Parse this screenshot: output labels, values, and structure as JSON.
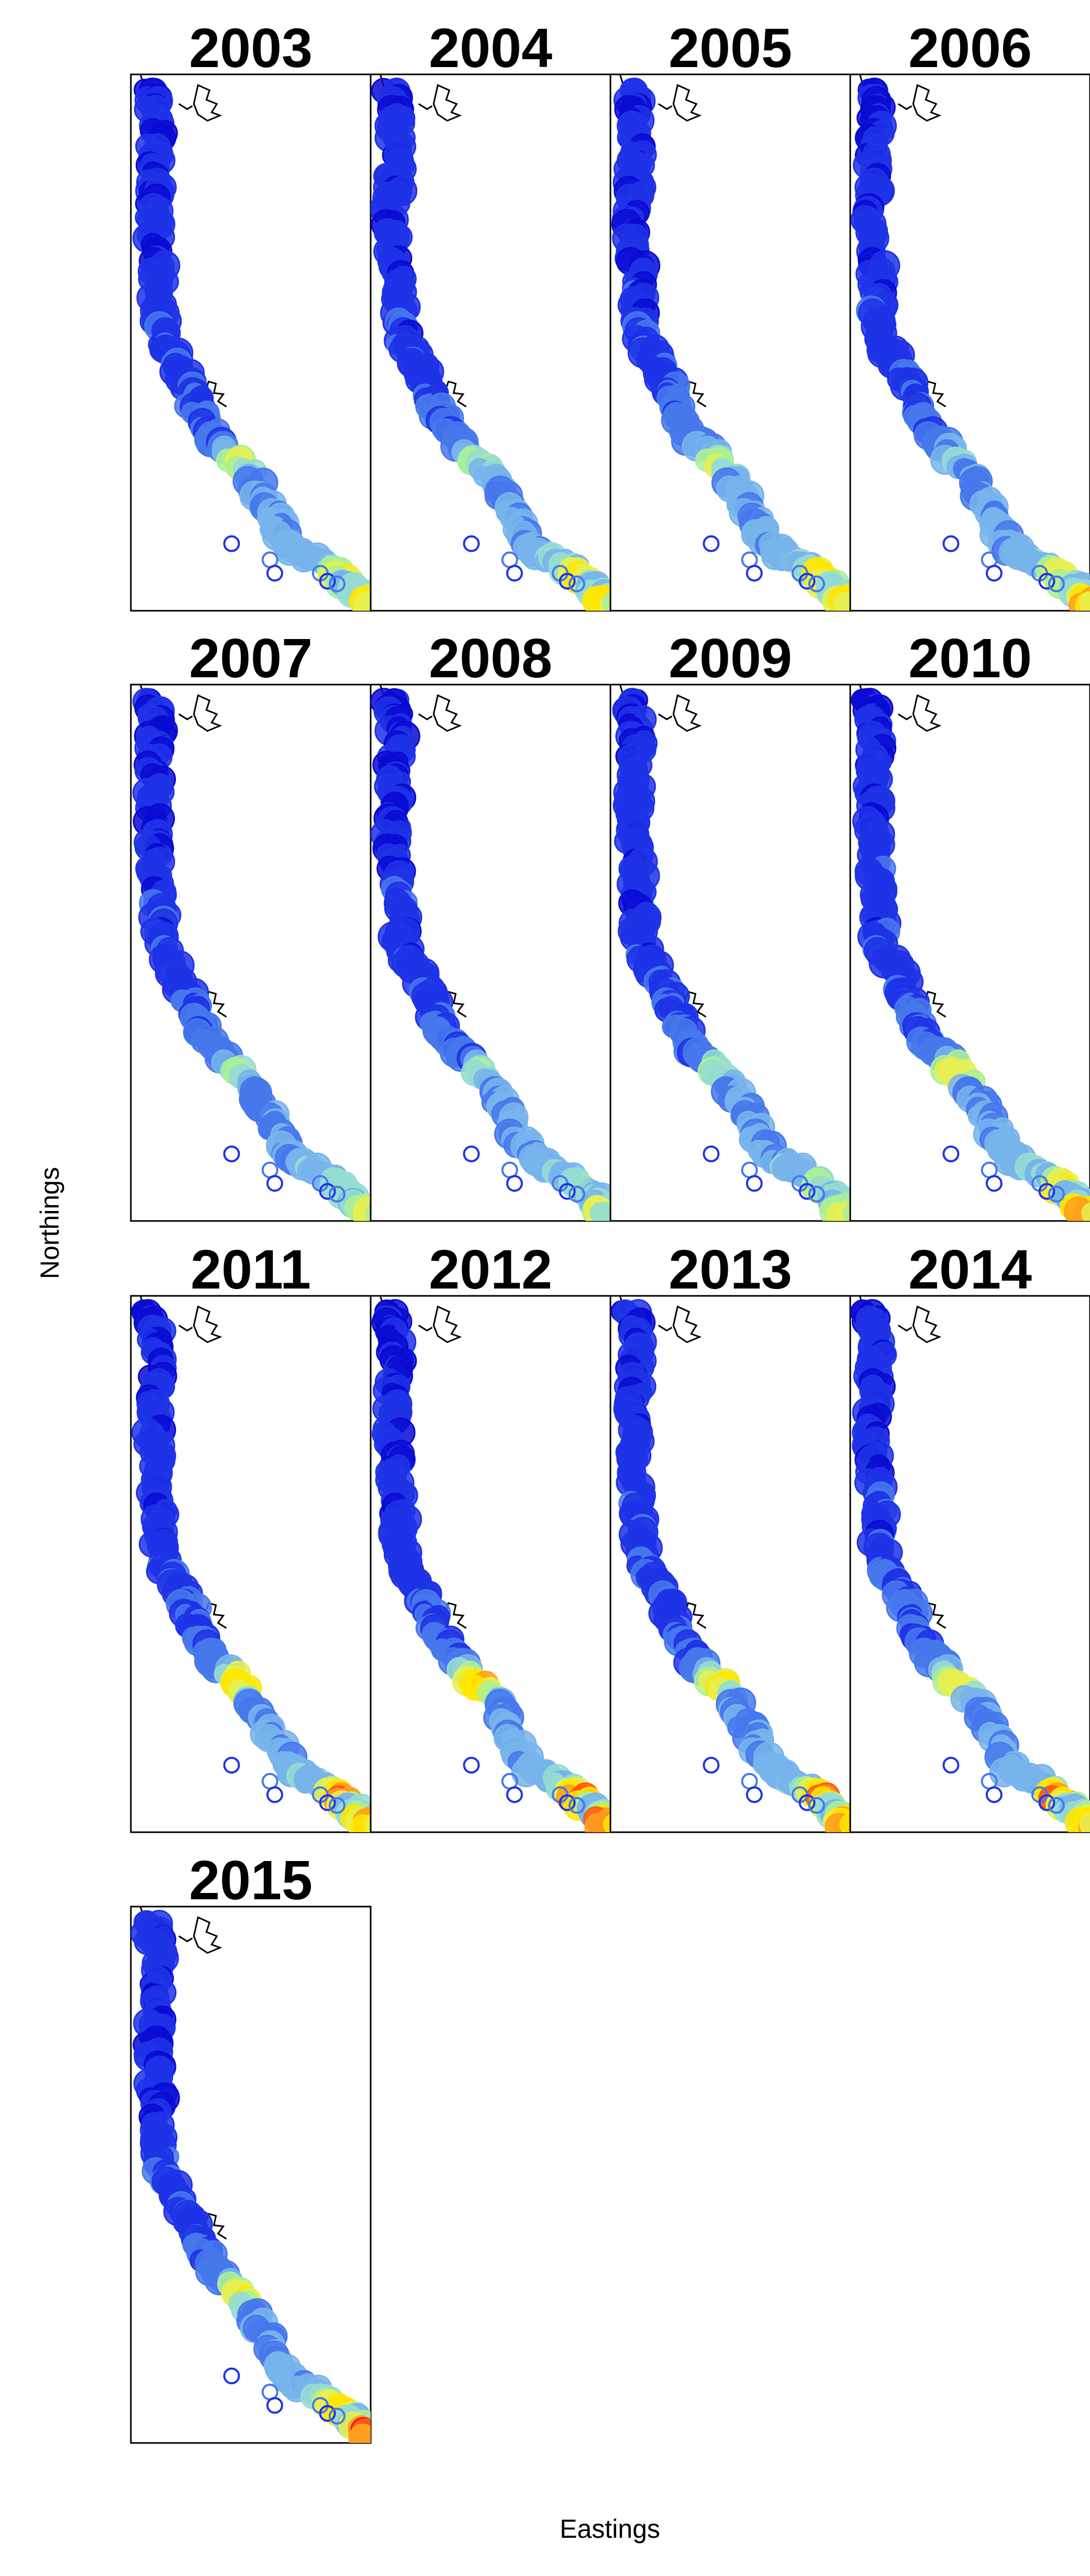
{
  "figure": {
    "xlabel": "Eastings",
    "ylabel": "Northings"
  },
  "colors": {
    "scale": [
      "#0a0ad2",
      "#1e32e6",
      "#4678ec",
      "#78b4ec",
      "#96dcd2",
      "#aaf096",
      "#e6f050",
      "#ffe600",
      "#ffa01e",
      "#ff5a14",
      "#e61e1e"
    ]
  },
  "panels": [
    {
      "year": "2003",
      "hotspots": [
        [
          0.64,
          5
        ],
        [
          0.9,
          6
        ],
        [
          0.985,
          6
        ]
      ]
    },
    {
      "year": "2004",
      "hotspots": [
        [
          0.64,
          4
        ],
        [
          0.9,
          6
        ],
        [
          0.985,
          6
        ]
      ]
    },
    {
      "year": "2005",
      "hotspots": [
        [
          0.64,
          5
        ],
        [
          0.9,
          7
        ],
        [
          0.985,
          6
        ]
      ]
    },
    {
      "year": "2006",
      "hotspots": [
        [
          0.64,
          3
        ],
        [
          0.9,
          6
        ],
        [
          0.985,
          7
        ]
      ]
    },
    {
      "year": "2007",
      "hotspots": [
        [
          0.64,
          4
        ],
        [
          0.9,
          4
        ],
        [
          0.985,
          5
        ]
      ]
    },
    {
      "year": "2008",
      "hotspots": [
        [
          0.64,
          4
        ],
        [
          0.9,
          4
        ],
        [
          0.985,
          5
        ]
      ]
    },
    {
      "year": "2009",
      "hotspots": [
        [
          0.64,
          4
        ],
        [
          0.9,
          5
        ],
        [
          0.985,
          5
        ]
      ]
    },
    {
      "year": "2010",
      "hotspots": [
        [
          0.64,
          6
        ],
        [
          0.9,
          6
        ],
        [
          0.985,
          7
        ]
      ]
    },
    {
      "year": "2011",
      "hotspots": [
        [
          0.64,
          7
        ],
        [
          0.9,
          8
        ],
        [
          0.985,
          7
        ]
      ]
    },
    {
      "year": "2012",
      "hotspots": [
        [
          0.64,
          7
        ],
        [
          0.9,
          8
        ],
        [
          0.985,
          8
        ]
      ]
    },
    {
      "year": "2013",
      "hotspots": [
        [
          0.64,
          6
        ],
        [
          0.9,
          8
        ],
        [
          0.985,
          7
        ]
      ]
    },
    {
      "year": "2014",
      "hotspots": [
        [
          0.64,
          6
        ],
        [
          0.9,
          8
        ],
        [
          0.985,
          7
        ]
      ]
    },
    {
      "year": "2015",
      "hotspots": [
        [
          0.64,
          6
        ],
        [
          0.9,
          7
        ],
        [
          0.985,
          9
        ]
      ]
    }
  ]
}
